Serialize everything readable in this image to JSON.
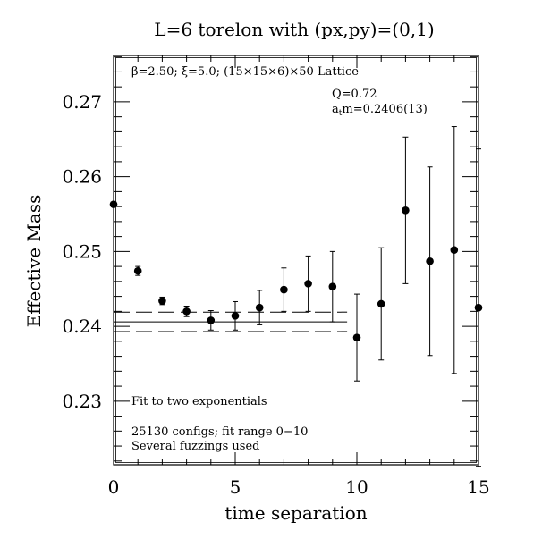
{
  "chart_data": {
    "type": "scatter",
    "title": "L=6 torelon with (px,py)=(0,1)",
    "xlabel": "time separation",
    "ylabel": "Effective Mass",
    "xlim": [
      0,
      15
    ],
    "ylim": [
      0.2215,
      0.2762
    ],
    "xticks": [
      0,
      5,
      10,
      15
    ],
    "xtick_labels": [
      "0",
      "5",
      "10",
      "15"
    ],
    "yticks": [
      0.23,
      0.24,
      0.25,
      0.26,
      0.27
    ],
    "ytick_labels": [
      "0.23",
      "0.24",
      "0.25",
      "0.26",
      "0.27"
    ],
    "grid": false,
    "points": [
      {
        "x": 0,
        "y": 0.2563,
        "err": 0.0003
      },
      {
        "x": 1,
        "y": 0.2474,
        "err": 0.0006
      },
      {
        "x": 2,
        "y": 0.2434,
        "err": 0.0005
      },
      {
        "x": 3,
        "y": 0.242,
        "err": 0.0007
      },
      {
        "x": 4,
        "y": 0.2408,
        "err": 0.0013
      },
      {
        "x": 5,
        "y": 0.2414,
        "err": 0.0019
      },
      {
        "x": 6,
        "y": 0.2425,
        "err": 0.0023
      },
      {
        "x": 7,
        "y": 0.2449,
        "err": 0.0029
      },
      {
        "x": 8,
        "y": 0.2457,
        "err": 0.0037
      },
      {
        "x": 9,
        "y": 0.2453,
        "err": 0.0047
      },
      {
        "x": 10,
        "y": 0.2385,
        "err": 0.0058
      },
      {
        "x": 11,
        "y": 0.243,
        "err": 0.0075
      },
      {
        "x": 12,
        "y": 0.2555,
        "err": 0.0098
      },
      {
        "x": 13,
        "y": 0.2487,
        "err": 0.0126
      },
      {
        "x": 14,
        "y": 0.2502,
        "err": 0.0165
      },
      {
        "x": 15,
        "y": 0.2425,
        "err": 0.0212
      }
    ],
    "fit": {
      "x_range": [
        0,
        9.6
      ],
      "central": 0.2406,
      "upper": 0.2419,
      "lower": 0.2393
    },
    "annotations": {
      "lattice": "β=2.50; ξ=5.0; (15×15×6)×50 Lattice",
      "q": "Q=0.72",
      "mass": "atm=0.2406(13)",
      "fit_desc": "Fit to two exponentials",
      "configs": "25130 configs; fit range 0−10",
      "fuzz": "Several fuzzings used"
    }
  }
}
